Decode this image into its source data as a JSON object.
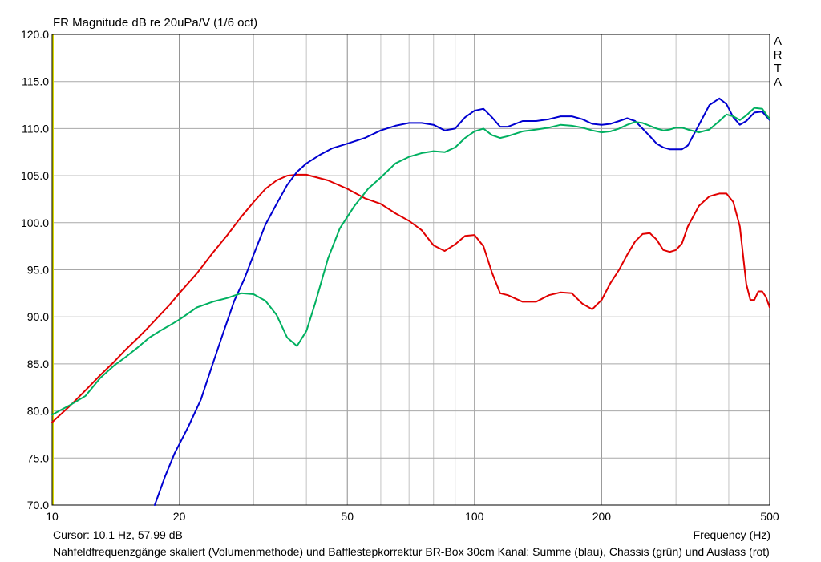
{
  "header": {
    "title": "FR Magnitude dB re 20uPa/V (1/6 oct)",
    "brand_letters": [
      "A",
      "R",
      "T",
      "A"
    ]
  },
  "footer": {
    "cursor": "Cursor: 10.1 Hz, 57.99 dB",
    "xlabel": "Frequency (Hz)",
    "caption": "Nahfeldfrequenzgänge skaliert (Volumenmethode) und Bafflestepkorrektur BR-Box 30cm Kanal: Summe (blau), Chassis (grün) und Auslass (rot)"
  },
  "chart_data": {
    "type": "line",
    "title": "FR Magnitude dB re 20uPa/V (1/6 oct)",
    "xlabel": "Frequency (Hz)",
    "ylabel": "",
    "xscale": "log",
    "xlim": [
      10,
      500
    ],
    "ylim": [
      70,
      120
    ],
    "grid": true,
    "x_tick_values": [
      10,
      20,
      50,
      100,
      200,
      500
    ],
    "x_tick_labels": [
      "10",
      "20",
      "50",
      "100",
      "200",
      "500"
    ],
    "y_tick_values": [
      70,
      75,
      80,
      85,
      90,
      95,
      100,
      105,
      110,
      115,
      120
    ],
    "y_tick_labels": [
      "70.0",
      "75.0",
      "80.0",
      "85.0",
      "90.0",
      "95.0",
      "100.0",
      "105.0",
      "110.0",
      "115.0",
      "120.0"
    ],
    "series": [
      {
        "color": "#e00000",
        "points": [
          [
            10,
            78.8
          ],
          [
            11,
            80.5
          ],
          [
            12,
            82.2
          ],
          [
            13,
            83.8
          ],
          [
            14,
            85.2
          ],
          [
            15,
            86.6
          ],
          [
            16,
            87.8
          ],
          [
            17,
            89.0
          ],
          [
            18,
            90.2
          ],
          [
            19,
            91.3
          ],
          [
            20,
            92.5
          ],
          [
            22,
            94.6
          ],
          [
            24,
            96.8
          ],
          [
            26,
            98.7
          ],
          [
            28,
            100.6
          ],
          [
            30,
            102.2
          ],
          [
            32,
            103.6
          ],
          [
            34,
            104.5
          ],
          [
            36,
            105.0
          ],
          [
            38,
            105.1
          ],
          [
            40,
            105.1
          ],
          [
            45,
            104.5
          ],
          [
            50,
            103.6
          ],
          [
            55,
            102.6
          ],
          [
            60,
            102.0
          ],
          [
            65,
            101.0
          ],
          [
            70,
            100.2
          ],
          [
            75,
            99.2
          ],
          [
            80,
            97.6
          ],
          [
            85,
            97.0
          ],
          [
            90,
            97.7
          ],
          [
            95,
            98.6
          ],
          [
            100,
            98.7
          ],
          [
            105,
            97.5
          ],
          [
            110,
            94.7
          ],
          [
            115,
            92.5
          ],
          [
            120,
            92.3
          ],
          [
            130,
            91.6
          ],
          [
            140,
            91.6
          ],
          [
            150,
            92.3
          ],
          [
            160,
            92.6
          ],
          [
            170,
            92.5
          ],
          [
            180,
            91.4
          ],
          [
            190,
            90.8
          ],
          [
            200,
            91.8
          ],
          [
            210,
            93.6
          ],
          [
            220,
            95.0
          ],
          [
            230,
            96.6
          ],
          [
            240,
            98.0
          ],
          [
            250,
            98.8
          ],
          [
            260,
            98.9
          ],
          [
            270,
            98.2
          ],
          [
            280,
            97.1
          ],
          [
            290,
            96.9
          ],
          [
            300,
            97.1
          ],
          [
            310,
            97.8
          ],
          [
            320,
            99.6
          ],
          [
            340,
            101.8
          ],
          [
            360,
            102.8
          ],
          [
            380,
            103.1
          ],
          [
            395,
            103.1
          ],
          [
            410,
            102.2
          ],
          [
            425,
            99.6
          ],
          [
            440,
            93.5
          ],
          [
            450,
            91.8
          ],
          [
            460,
            91.8
          ],
          [
            470,
            92.7
          ],
          [
            480,
            92.7
          ],
          [
            490,
            92.1
          ],
          [
            500,
            91.0
          ]
        ]
      },
      {
        "color": "#0000d0",
        "points": [
          [
            17.5,
            70.0
          ],
          [
            18.5,
            73.0
          ],
          [
            19.5,
            75.5
          ],
          [
            21,
            78.3
          ],
          [
            22.5,
            81.2
          ],
          [
            24,
            85.0
          ],
          [
            25.5,
            88.5
          ],
          [
            27,
            91.7
          ],
          [
            28.5,
            94.0
          ],
          [
            30,
            96.6
          ],
          [
            32,
            99.8
          ],
          [
            34,
            102.0
          ],
          [
            36,
            104.0
          ],
          [
            38,
            105.4
          ],
          [
            40,
            106.3
          ],
          [
            43,
            107.2
          ],
          [
            46,
            107.9
          ],
          [
            50,
            108.4
          ],
          [
            55,
            109.0
          ],
          [
            60,
            109.8
          ],
          [
            65,
            110.3
          ],
          [
            70,
            110.6
          ],
          [
            75,
            110.6
          ],
          [
            80,
            110.4
          ],
          [
            85,
            109.8
          ],
          [
            90,
            110.0
          ],
          [
            95,
            111.2
          ],
          [
            100,
            111.9
          ],
          [
            105,
            112.1
          ],
          [
            110,
            111.2
          ],
          [
            115,
            110.2
          ],
          [
            120,
            110.2
          ],
          [
            130,
            110.8
          ],
          [
            140,
            110.8
          ],
          [
            150,
            111.0
          ],
          [
            160,
            111.3
          ],
          [
            170,
            111.3
          ],
          [
            180,
            111.0
          ],
          [
            190,
            110.5
          ],
          [
            200,
            110.4
          ],
          [
            210,
            110.5
          ],
          [
            220,
            110.8
          ],
          [
            230,
            111.1
          ],
          [
            240,
            110.8
          ],
          [
            250,
            110.0
          ],
          [
            260,
            109.2
          ],
          [
            270,
            108.4
          ],
          [
            280,
            108.0
          ],
          [
            290,
            107.8
          ],
          [
            300,
            107.8
          ],
          [
            310,
            107.8
          ],
          [
            320,
            108.2
          ],
          [
            340,
            110.4
          ],
          [
            360,
            112.5
          ],
          [
            380,
            113.2
          ],
          [
            395,
            112.6
          ],
          [
            410,
            111.2
          ],
          [
            425,
            110.4
          ],
          [
            440,
            110.8
          ],
          [
            460,
            111.7
          ],
          [
            480,
            111.8
          ],
          [
            500,
            110.9
          ]
        ]
      },
      {
        "color": "#00b060",
        "points": [
          [
            10,
            79.6
          ],
          [
            11,
            80.6
          ],
          [
            12,
            81.6
          ],
          [
            13,
            83.5
          ],
          [
            14,
            84.8
          ],
          [
            15,
            85.8
          ],
          [
            16,
            86.8
          ],
          [
            17,
            87.8
          ],
          [
            18,
            88.5
          ],
          [
            19,
            89.1
          ],
          [
            20,
            89.7
          ],
          [
            22,
            91.0
          ],
          [
            24,
            91.6
          ],
          [
            26,
            92.0
          ],
          [
            28,
            92.5
          ],
          [
            30,
            92.4
          ],
          [
            32,
            91.7
          ],
          [
            34,
            90.2
          ],
          [
            36,
            87.8
          ],
          [
            38,
            86.9
          ],
          [
            40,
            88.5
          ],
          [
            42,
            91.5
          ],
          [
            45,
            96.2
          ],
          [
            48,
            99.4
          ],
          [
            52,
            101.8
          ],
          [
            56,
            103.6
          ],
          [
            60,
            104.8
          ],
          [
            65,
            106.3
          ],
          [
            70,
            107.0
          ],
          [
            75,
            107.4
          ],
          [
            80,
            107.6
          ],
          [
            85,
            107.5
          ],
          [
            90,
            108.0
          ],
          [
            95,
            109.0
          ],
          [
            100,
            109.7
          ],
          [
            105,
            110.0
          ],
          [
            110,
            109.3
          ],
          [
            115,
            109.0
          ],
          [
            120,
            109.2
          ],
          [
            130,
            109.7
          ],
          [
            140,
            109.9
          ],
          [
            150,
            110.1
          ],
          [
            160,
            110.4
          ],
          [
            170,
            110.3
          ],
          [
            180,
            110.1
          ],
          [
            190,
            109.8
          ],
          [
            200,
            109.6
          ],
          [
            210,
            109.7
          ],
          [
            220,
            110.0
          ],
          [
            230,
            110.4
          ],
          [
            240,
            110.7
          ],
          [
            250,
            110.6
          ],
          [
            260,
            110.3
          ],
          [
            270,
            110.0
          ],
          [
            280,
            109.8
          ],
          [
            290,
            109.9
          ],
          [
            300,
            110.1
          ],
          [
            310,
            110.1
          ],
          [
            320,
            109.9
          ],
          [
            340,
            109.6
          ],
          [
            360,
            109.9
          ],
          [
            380,
            110.8
          ],
          [
            395,
            111.5
          ],
          [
            410,
            111.3
          ],
          [
            425,
            110.9
          ],
          [
            440,
            111.4
          ],
          [
            460,
            112.2
          ],
          [
            480,
            112.1
          ],
          [
            500,
            111.0
          ]
        ]
      }
    ]
  }
}
